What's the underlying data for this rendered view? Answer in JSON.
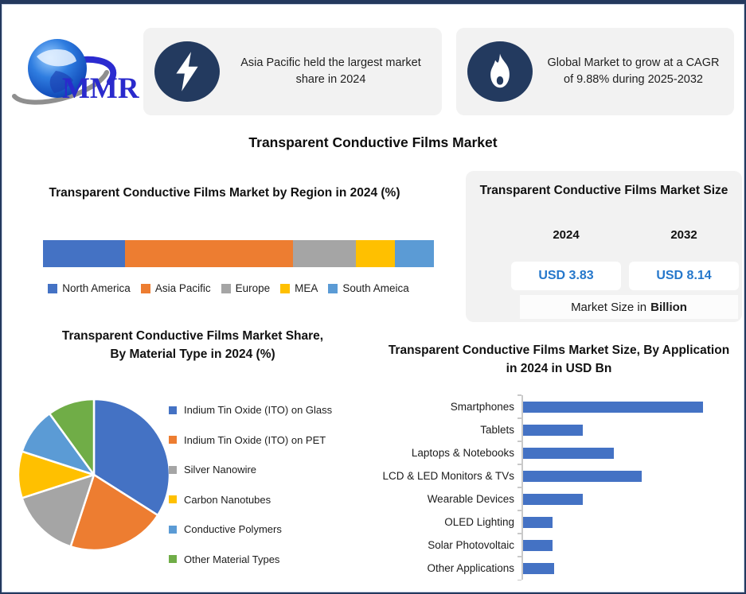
{
  "page_title": "Transparent Conductive Films Market",
  "logo": {
    "text": "MMR"
  },
  "callouts": [
    {
      "icon": "lightning-icon",
      "text": "Asia Pacific held the largest market share in 2024"
    },
    {
      "icon": "flame-icon",
      "text": "Global Market to grow at a CAGR of 9.88% during 2025-2032"
    }
  ],
  "market_size": {
    "title": "Transparent Conductive Films Market Size",
    "years": [
      "2024",
      "2032"
    ],
    "values": [
      "USD 3.83",
      "USD 8.14"
    ],
    "footnote_prefix": "Market Size in",
    "footnote_bold": "Billion",
    "value_color": "#2577cb"
  },
  "colors": {
    "navy": "#233a5f",
    "bar_blue": "#4472c4",
    "panel_gray": "#f2f2f2"
  },
  "chart_data": [
    {
      "type": "bar",
      "subtype": "stacked-horizontal",
      "title": "Transparent Conductive Films Market by Region in 2024 (%)",
      "categories": [
        "North America",
        "Asia Pacific",
        "Europe",
        "MEA",
        "South Ameica"
      ],
      "values": [
        21,
        43,
        16,
        10,
        10
      ],
      "colors": [
        "#4472c4",
        "#ed7d31",
        "#a5a5a5",
        "#ffc000",
        "#5b9bd5"
      ],
      "legend_position": "bottom",
      "unit": "%"
    },
    {
      "type": "pie",
      "title": "Transparent Conductive Films Market Share, By Material Type in 2024 (%)",
      "labels": [
        "Indium Tin Oxide (ITO) on Glass",
        "Indium Tin Oxide (ITO) on PET",
        "Silver Nanowire",
        "Carbon Nanotubes",
        "Conductive Polymers",
        "Other Material Types"
      ],
      "values": [
        34,
        21,
        15,
        10,
        10,
        10
      ],
      "colors": [
        "#4472c4",
        "#ed7d31",
        "#a5a5a5",
        "#ffc000",
        "#5b9bd5",
        "#70ad47"
      ],
      "legend_position": "right",
      "unit": "%"
    },
    {
      "type": "bar",
      "subtype": "horizontal",
      "title": "Transparent Conductive Films Market Size, By Application in 2024 in USD Bn",
      "categories": [
        "Smartphones",
        "Tablets",
        "Laptops & Notebooks",
        "LCD & LED Monitors & TVs",
        "Wearable Devices",
        "OLED Lighting",
        "Solar Photovoltaic",
        "Other Applications"
      ],
      "values": [
        1.15,
        0.38,
        0.58,
        0.76,
        0.38,
        0.19,
        0.19,
        0.2
      ],
      "bar_color": "#4472c4",
      "xlim": [
        0,
        1.35
      ],
      "ylabel": "",
      "xlabel": "USD Bn",
      "grid": false
    }
  ]
}
